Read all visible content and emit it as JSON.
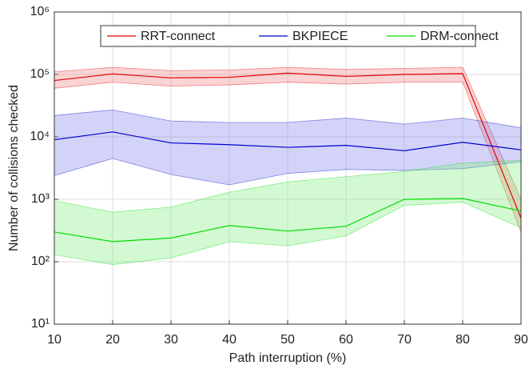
{
  "chart_data": {
    "type": "line_band",
    "x_label": "Path interruption (%)",
    "y_label": "Number of collisions checked",
    "x": [
      10,
      20,
      30,
      40,
      50,
      60,
      70,
      80,
      90
    ],
    "xlim": [
      10,
      90
    ],
    "xticks": [
      10,
      20,
      30,
      40,
      50,
      60,
      70,
      80,
      90
    ],
    "ylim": [
      10,
      1000000
    ],
    "log_y": true,
    "grid": true,
    "legend": "top",
    "yticks": [
      {
        "value": 10,
        "label": "10¹"
      },
      {
        "value": 100,
        "label": "10²"
      },
      {
        "value": 1000,
        "label": "10³"
      },
      {
        "value": 10000,
        "label": "10⁴"
      },
      {
        "value": 100000,
        "label": "10⁵"
      },
      {
        "value": 1000000,
        "label": "10⁶"
      }
    ],
    "series": [
      {
        "name": "RRT-connect",
        "color": "#e00000",
        "fill": "#f08080",
        "values": [
          80000,
          102000,
          88000,
          90000,
          105000,
          93000,
          100000,
          103000,
          500
        ],
        "upper": [
          110000,
          130000,
          115000,
          118000,
          130000,
          120000,
          125000,
          130000,
          1000
        ],
        "lower": [
          60000,
          75000,
          65000,
          68000,
          75000,
          70000,
          75000,
          75000,
          300
        ]
      },
      {
        "name": "BKPIECE",
        "color": "#0000cc",
        "fill": "#8080ee",
        "values": [
          9000,
          12000,
          8000,
          7500,
          6800,
          7300,
          6000,
          8200,
          6200
        ],
        "upper": [
          22000,
          27000,
          18000,
          17000,
          17000,
          20000,
          16000,
          20000,
          14000
        ],
        "lower": [
          2400,
          4500,
          2500,
          1700,
          2600,
          3000,
          2900,
          3100,
          4000
        ]
      },
      {
        "name": "DRM-connect",
        "color": "#00dd00",
        "fill": "#80ee80",
        "values": [
          300,
          210,
          240,
          380,
          310,
          370,
          1000,
          1030,
          650
        ],
        "upper": [
          950,
          620,
          750,
          1300,
          1900,
          2300,
          2800,
          3800,
          4200
        ],
        "lower": [
          130,
          90,
          115,
          210,
          180,
          260,
          800,
          900,
          350
        ]
      }
    ]
  }
}
